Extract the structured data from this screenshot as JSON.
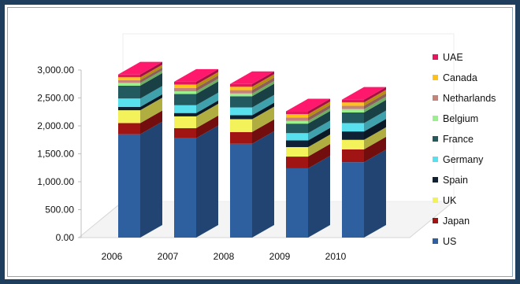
{
  "chart_data": {
    "type": "bar",
    "stacked": true,
    "three_d": true,
    "title": "",
    "xlabel": "",
    "ylabel": "",
    "ylim": [
      0,
      3000
    ],
    "yticks": [
      "0.00",
      "500.00",
      "1,000.00",
      "1,500.00",
      "2,000.00",
      "2,500.00",
      "3,000.00"
    ],
    "ytick_values": [
      0,
      500,
      1000,
      1500,
      2000,
      2500,
      3000
    ],
    "categories": [
      "2006",
      "2007",
      "2008",
      "2009",
      "2010"
    ],
    "legend_position": "right",
    "series": [
      {
        "name": "US",
        "color": "#2e5f9e",
        "values": [
          1850,
          1780,
          1680,
          1240,
          1350
        ]
      },
      {
        "name": "Japan",
        "color": "#a01414",
        "values": [
          200,
          180,
          210,
          210,
          230
        ]
      },
      {
        "name": "UK",
        "color": "#f4f25a",
        "values": [
          230,
          210,
          230,
          170,
          170
        ]
      },
      {
        "name": "Spain",
        "color": "#0f2235",
        "values": [
          60,
          60,
          70,
          120,
          150
        ]
      },
      {
        "name": "Germany",
        "color": "#58e0ee",
        "values": [
          150,
          140,
          140,
          130,
          150
        ]
      },
      {
        "name": "France",
        "color": "#235a60",
        "values": [
          230,
          200,
          200,
          170,
          190
        ]
      },
      {
        "name": "Belgium",
        "color": "#9af08c",
        "values": [
          50,
          50,
          50,
          50,
          60
        ]
      },
      {
        "name": "Netharlands",
        "color": "#c5837a",
        "values": [
          50,
          60,
          60,
          60,
          60
        ]
      },
      {
        "name": "Canada",
        "color": "#ffc21a",
        "values": [
          50,
          60,
          60,
          60,
          60
        ]
      },
      {
        "name": "UAE",
        "color": "#e6155e",
        "values": [
          50,
          50,
          50,
          50,
          50
        ]
      }
    ]
  }
}
